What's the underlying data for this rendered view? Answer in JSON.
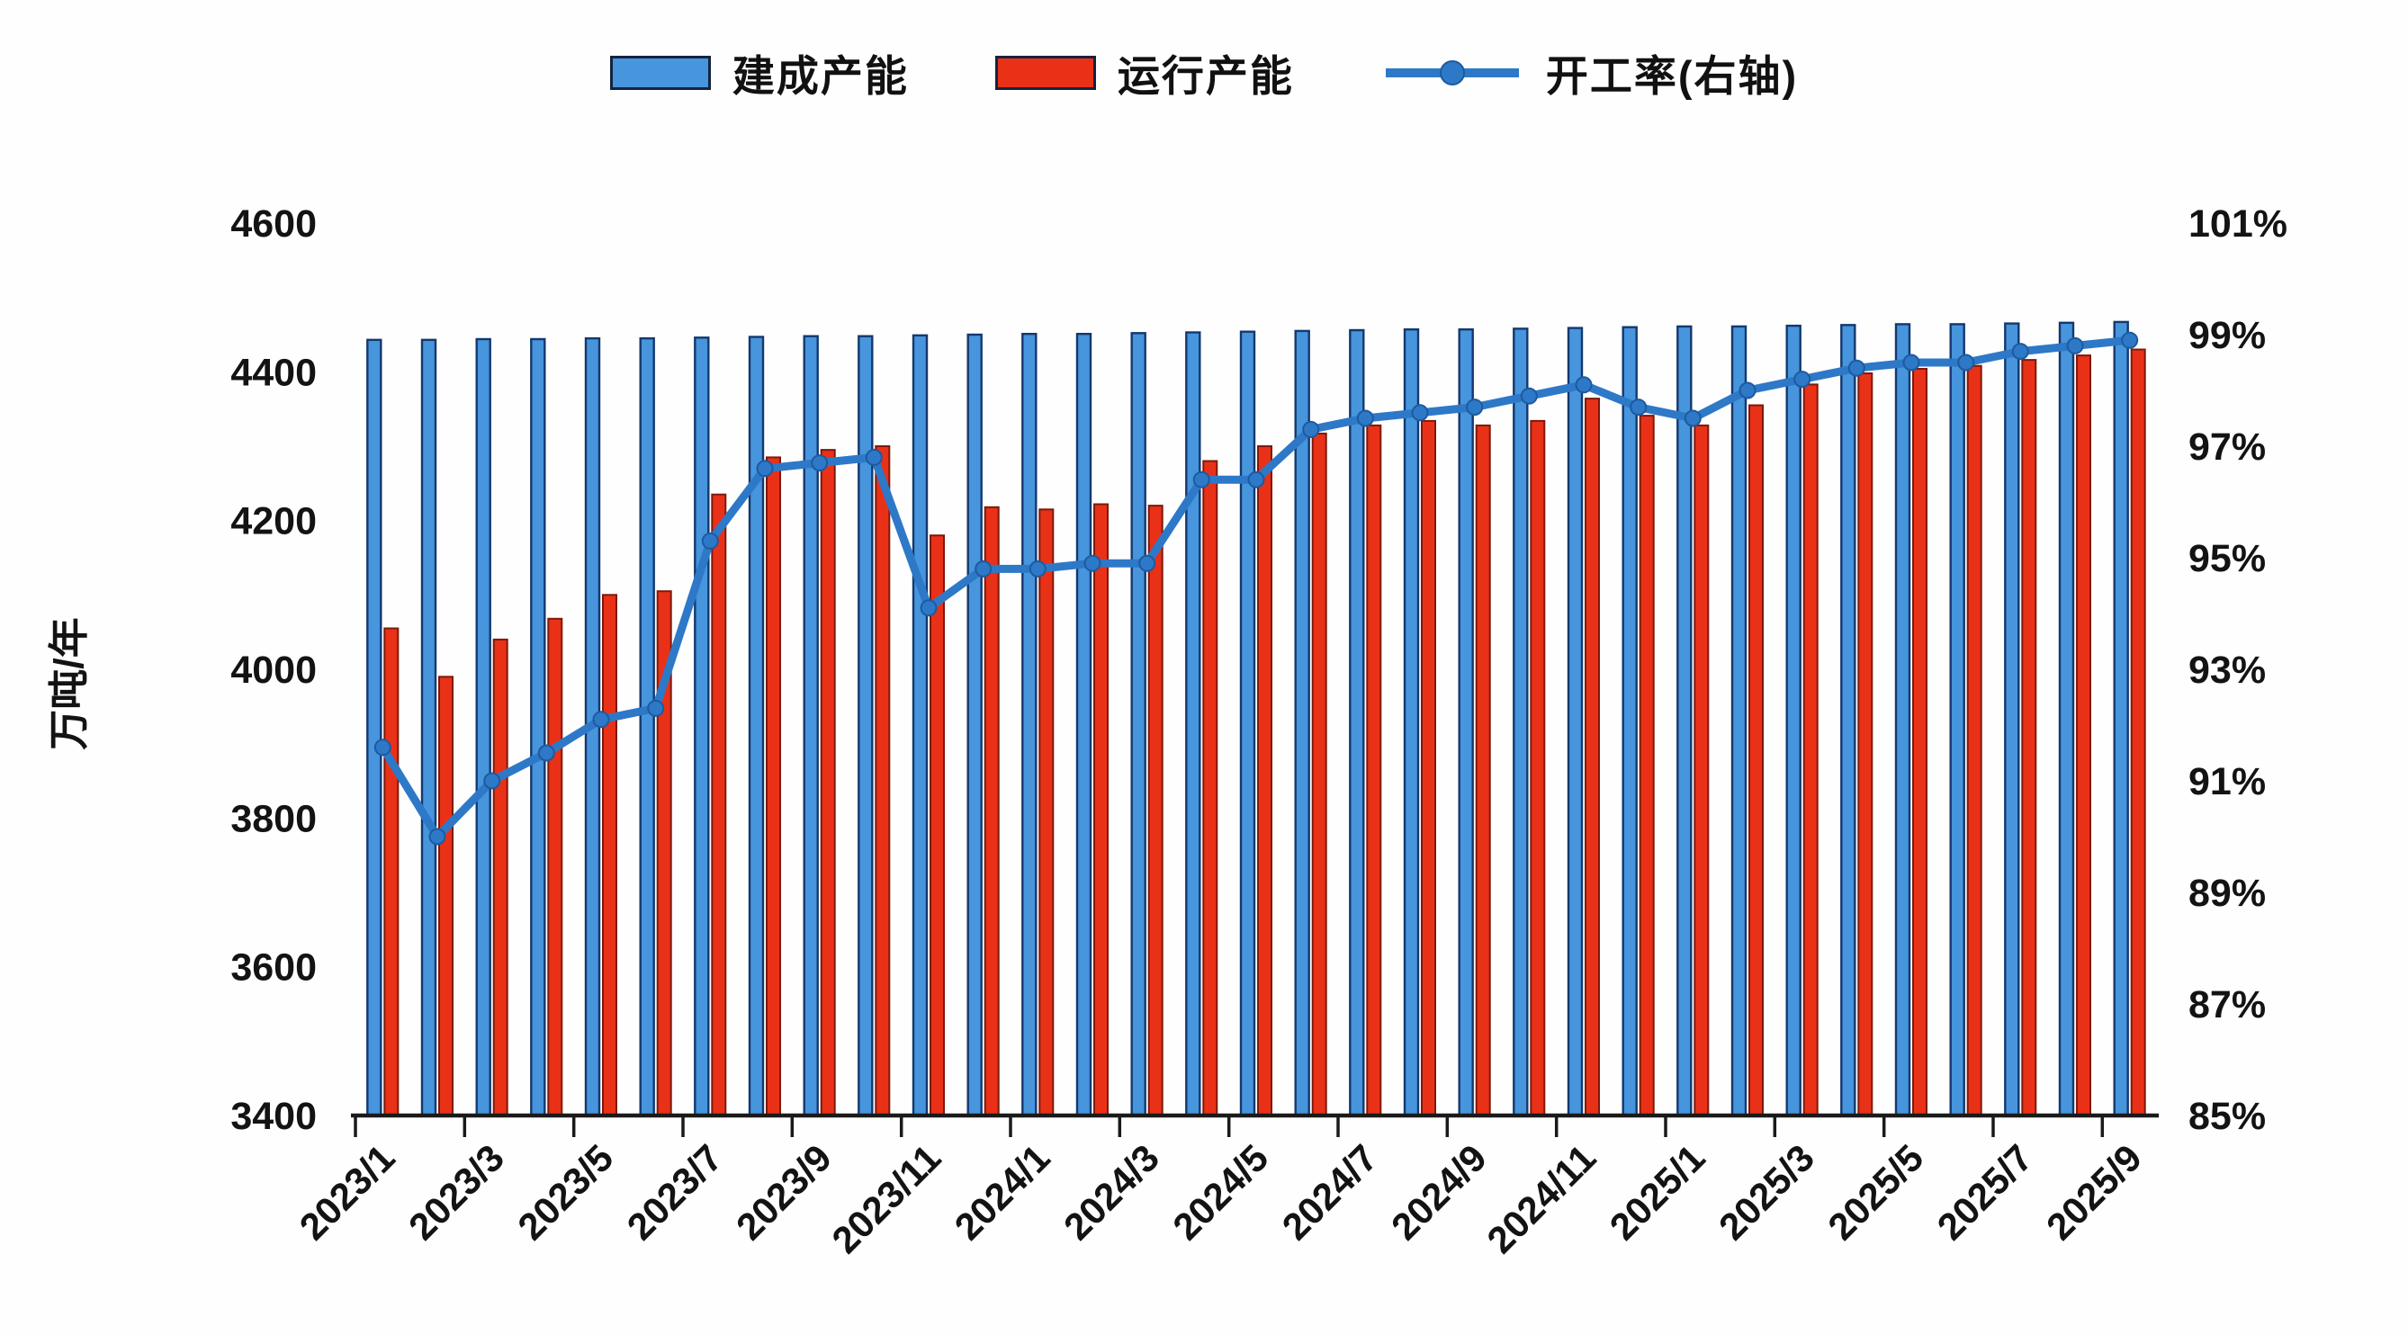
{
  "legend": {
    "items": [
      {
        "label": "建成产能",
        "type": "bar"
      },
      {
        "label": "运行产能",
        "type": "bar"
      },
      {
        "label": "开工率(右轴)",
        "type": "line"
      }
    ]
  },
  "chart_data": {
    "type": "bar",
    "subtype": "bar+line-combo",
    "title": "",
    "xlabel": "",
    "ylabel_left": "万吨/年",
    "legend_position": "top",
    "grid": false,
    "categories": [
      "2023/1",
      "2023/2",
      "2023/3",
      "2023/4",
      "2023/5",
      "2023/6",
      "2023/7",
      "2023/8",
      "2023/9",
      "2023/10",
      "2023/11",
      "2023/12",
      "2024/1",
      "2024/2",
      "2024/3",
      "2024/4",
      "2024/5",
      "2024/6",
      "2024/7",
      "2024/8",
      "2024/9",
      "2024/10",
      "2024/11",
      "2024/12",
      "2025/1",
      "2025/2",
      "2025/3",
      "2025/4",
      "2025/5",
      "2025/6",
      "2025/7",
      "2025/8",
      "2025/9"
    ],
    "x_tick_labels": [
      "2023/1",
      "2023/3",
      "2023/5",
      "2023/7",
      "2023/9",
      "2023/11",
      "2024/1",
      "2024/3",
      "2024/5",
      "2024/7",
      "2024/9",
      "2024/11",
      "2025/1",
      "2025/3",
      "2025/5",
      "2025/7",
      "2025/9"
    ],
    "series": [
      {
        "name": "建成产能",
        "type": "bar",
        "axis": "left",
        "color": "#4695dd",
        "edge_color": "#14386e",
        "values": [
          4443,
          4443,
          4444,
          4444,
          4445,
          4445,
          4446,
          4447,
          4448,
          4448,
          4449,
          4450,
          4451,
          4451,
          4452,
          4453,
          4454,
          4455,
          4456,
          4457,
          4457,
          4458,
          4459,
          4460,
          4461,
          4461,
          4462,
          4463,
          4464,
          4464,
          4465,
          4466,
          4467
        ]
      },
      {
        "name": "运行产能",
        "type": "bar",
        "axis": "left",
        "color": "#e93118",
        "edge_color": "#7e190b",
        "values": [
          4055,
          3990,
          4040,
          4068,
          4100,
          4105,
          4235,
          4285,
          4295,
          4300,
          4180,
          4218,
          4215,
          4222,
          4220,
          4280,
          4300,
          4317,
          4328,
          4334,
          4328,
          4334,
          4364,
          4341,
          4328,
          4355,
          4383,
          4398,
          4404,
          4408,
          4416,
          4422,
          4430
        ]
      },
      {
        "name": "开工率(右轴)",
        "type": "line",
        "axis": "right",
        "color": "#2e78c8",
        "marker": "circle",
        "values": [
          91.6,
          90.0,
          91.0,
          91.5,
          92.1,
          92.3,
          95.3,
          96.6,
          96.7,
          96.8,
          94.1,
          94.8,
          94.8,
          94.9,
          94.9,
          96.4,
          96.4,
          97.3,
          97.5,
          97.6,
          97.7,
          97.9,
          98.1,
          97.7,
          97.5,
          98.0,
          98.2,
          98.4,
          98.5,
          98.5,
          98.7,
          98.8,
          98.9
        ]
      }
    ],
    "left_axis": {
      "title": "万吨/年",
      "min": 3400,
      "max": 4600,
      "tick_step": 200,
      "tick_labels": [
        "4600",
        "4400",
        "4200",
        "4000",
        "3800",
        "3600",
        "3400"
      ]
    },
    "right_axis": {
      "min": 85,
      "max": 101,
      "tick_step": 2,
      "tick_labels": [
        "101%",
        "99%",
        "97%",
        "95%",
        "93%",
        "91%",
        "89%",
        "87%",
        "85%"
      ]
    }
  }
}
